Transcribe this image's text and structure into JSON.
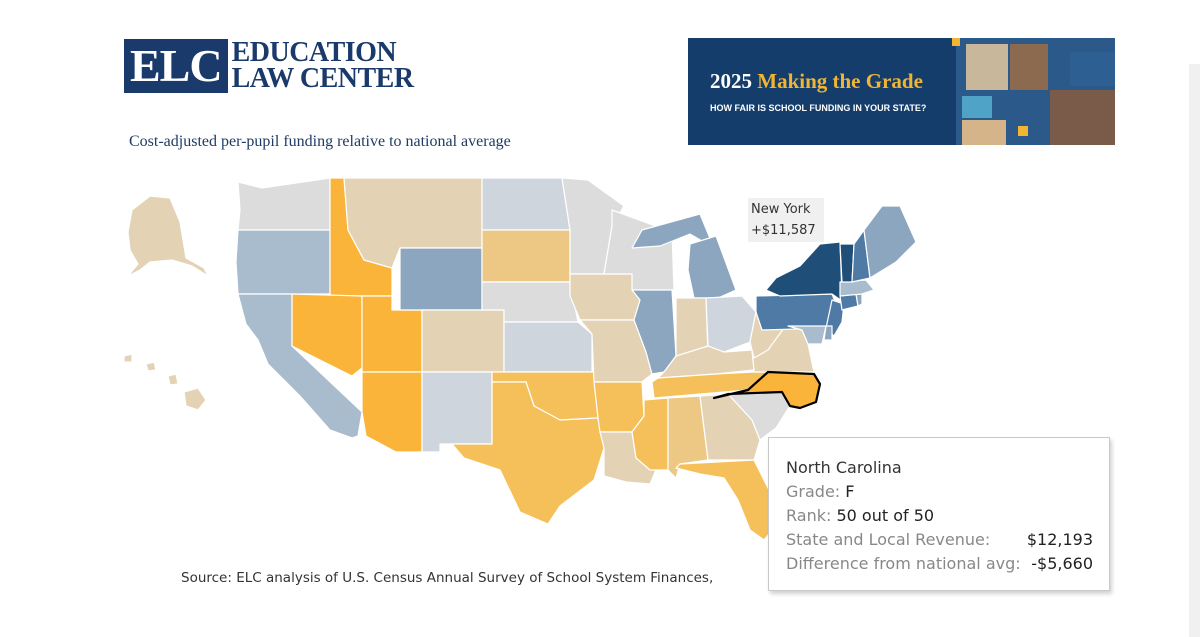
{
  "header": {
    "logo_abbrev": "ELC",
    "logo_line1": "EDUCATION",
    "logo_line2": "LAW CENTER",
    "subtitle": "Cost-adjusted per-pupil funding relative to national average"
  },
  "banner": {
    "year": "2025",
    "title": "Making the Grade",
    "subtitle": "HOW FAIR IS SCHOOL FUNDING IN YOUR STATE?"
  },
  "colors": {
    "darkest_blue": "#1f4e79",
    "dark_blue": "#4f7aa6",
    "medium_blue": "#8da6c0",
    "light_blue": "#a9bccd",
    "gray": "#cfd5dc",
    "light_gray": "#dcdcdc",
    "beige": "#e4d2b4",
    "light_gold": "#ecc884",
    "gold": "#f5c05a",
    "orange": "#fbb43a",
    "selected_outline": "#000000"
  },
  "map": {
    "selected_state": "North Carolina",
    "states": [
      {
        "name": "Alaska",
        "color": "beige"
      },
      {
        "name": "Hawaii",
        "color": "beige"
      },
      {
        "name": "Washington",
        "color": "light_gray"
      },
      {
        "name": "Oregon",
        "color": "light_blue"
      },
      {
        "name": "California",
        "color": "light_blue"
      },
      {
        "name": "Idaho",
        "color": "orange"
      },
      {
        "name": "Nevada",
        "color": "orange"
      },
      {
        "name": "Utah",
        "color": "orange"
      },
      {
        "name": "Arizona",
        "color": "orange"
      },
      {
        "name": "Montana",
        "color": "beige"
      },
      {
        "name": "Wyoming",
        "color": "medium_blue"
      },
      {
        "name": "Colorado",
        "color": "beige"
      },
      {
        "name": "New Mexico",
        "color": "gray"
      },
      {
        "name": "North Dakota",
        "color": "gray"
      },
      {
        "name": "South Dakota",
        "color": "light_gold"
      },
      {
        "name": "Nebraska",
        "color": "light_gray"
      },
      {
        "name": "Kansas",
        "color": "gray"
      },
      {
        "name": "Oklahoma",
        "color": "gold"
      },
      {
        "name": "Texas",
        "color": "gold"
      },
      {
        "name": "Minnesota",
        "color": "light_gray"
      },
      {
        "name": "Iowa",
        "color": "beige"
      },
      {
        "name": "Missouri",
        "color": "beige"
      },
      {
        "name": "Arkansas",
        "color": "gold"
      },
      {
        "name": "Louisiana",
        "color": "beige"
      },
      {
        "name": "Wisconsin",
        "color": "light_gray"
      },
      {
        "name": "Illinois",
        "color": "medium_blue"
      },
      {
        "name": "Michigan",
        "color": "medium_blue"
      },
      {
        "name": "Indiana",
        "color": "beige"
      },
      {
        "name": "Ohio",
        "color": "gray"
      },
      {
        "name": "Kentucky",
        "color": "beige"
      },
      {
        "name": "Tennessee",
        "color": "gold"
      },
      {
        "name": "Mississippi",
        "color": "gold"
      },
      {
        "name": "Alabama",
        "color": "light_gold"
      },
      {
        "name": "Georgia",
        "color": "beige"
      },
      {
        "name": "Florida",
        "color": "gold"
      },
      {
        "name": "South Carolina",
        "color": "light_gray"
      },
      {
        "name": "North Carolina",
        "color": "orange"
      },
      {
        "name": "Virginia",
        "color": "beige"
      },
      {
        "name": "West Virginia",
        "color": "beige"
      },
      {
        "name": "Pennsylvania",
        "color": "dark_blue"
      },
      {
        "name": "New York",
        "color": "darkest_blue"
      },
      {
        "name": "New Jersey",
        "color": "dark_blue"
      },
      {
        "name": "Maryland",
        "color": "light_blue"
      },
      {
        "name": "Delaware",
        "color": "medium_blue"
      },
      {
        "name": "Connecticut",
        "color": "dark_blue"
      },
      {
        "name": "Rhode Island",
        "color": "medium_blue"
      },
      {
        "name": "Massachusetts",
        "color": "light_blue"
      },
      {
        "name": "Vermont",
        "color": "darkest_blue"
      },
      {
        "name": "New Hampshire",
        "color": "dark_blue"
      },
      {
        "name": "Maine",
        "color": "medium_blue"
      }
    ]
  },
  "hover_label": {
    "state": "New York",
    "value": "+$11,587"
  },
  "tooltip": {
    "state": "North Carolina",
    "grade_label": "Grade:",
    "grade_value": "F",
    "rank_label": "Rank:",
    "rank_value": "50 out of 50",
    "revenue_label": "State and Local Revenue:",
    "revenue_value": "$12,193",
    "diff_label": "Difference from national avg:",
    "diff_value": "-$5,660"
  },
  "source": "Source: ELC analysis of U.S. Census Annual Survey of School System Finances,"
}
